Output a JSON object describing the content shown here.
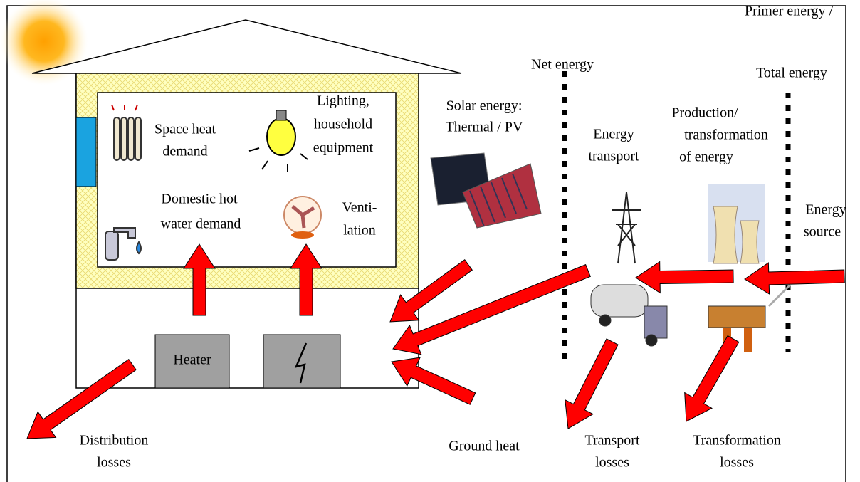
{
  "labels": {
    "net_energy": [
      "Net energy"
    ],
    "primary_energy": [
      "Primer energy /",
      "Total energy"
    ],
    "solar_energy": [
      "Solar energy:",
      "Thermal / PV"
    ],
    "energy_transport": [
      "Energy",
      "transport"
    ],
    "production": [
      "Production/",
      "transformation",
      "of energy"
    ],
    "energy_source": [
      "Energy",
      "source"
    ],
    "space_heat": [
      "Space heat",
      "demand"
    ],
    "lighting": [
      "Lighting,",
      "household",
      "equipment"
    ],
    "hot_water": [
      "Domestic hot",
      "water demand"
    ],
    "ventilation": [
      "Venti-",
      "lation"
    ],
    "heater": [
      "Heater"
    ],
    "distribution_losses": [
      "Distribution",
      "losses"
    ],
    "ground_heat": [
      "Ground heat"
    ],
    "transport_losses": [
      "Transport",
      "losses"
    ],
    "transformation_losses": [
      "Transformation",
      "losses"
    ]
  }
}
